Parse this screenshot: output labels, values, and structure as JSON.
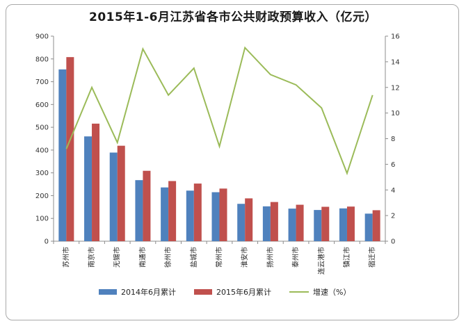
{
  "chart_data": {
    "type": "bar",
    "title": "2015年1-6月江苏省各市公共财政预算收入（亿元）",
    "categories": [
      "苏州市",
      "南京市",
      "无锡市",
      "南通市",
      "徐州市",
      "盐城市",
      "常州市",
      "淮安市",
      "扬州市",
      "泰州市",
      "连云港市",
      "镇江市",
      "宿迁市"
    ],
    "series": [
      {
        "name": "2014年6月累计",
        "color": "#4f81bd",
        "axis": "left",
        "values": [
          754,
          460,
          389,
          268,
          236,
          222,
          215,
          164,
          153,
          143,
          137,
          144,
          121
        ]
      },
      {
        "name": "2015年6月累计",
        "color": "#c0504d",
        "axis": "left",
        "values": [
          808,
          516,
          419,
          309,
          264,
          253,
          231,
          188,
          172,
          160,
          151,
          152,
          136
        ]
      },
      {
        "name": "增速（%）",
        "type": "line",
        "color": "#9bbb59",
        "axis": "right",
        "values": [
          7.2,
          12.0,
          7.7,
          15.0,
          11.4,
          13.5,
          7.4,
          15.1,
          13.0,
          12.2,
          10.4,
          5.3,
          11.4
        ]
      }
    ],
    "ylim": [
      0,
      900
    ],
    "yticks": [
      0,
      100,
      200,
      300,
      400,
      500,
      600,
      700,
      800,
      900
    ],
    "y2lim": [
      0,
      16
    ],
    "y2ticks": [
      0,
      2,
      4,
      6,
      8,
      10,
      12,
      14,
      16
    ],
    "legend_position": "bottom",
    "grid": false
  }
}
